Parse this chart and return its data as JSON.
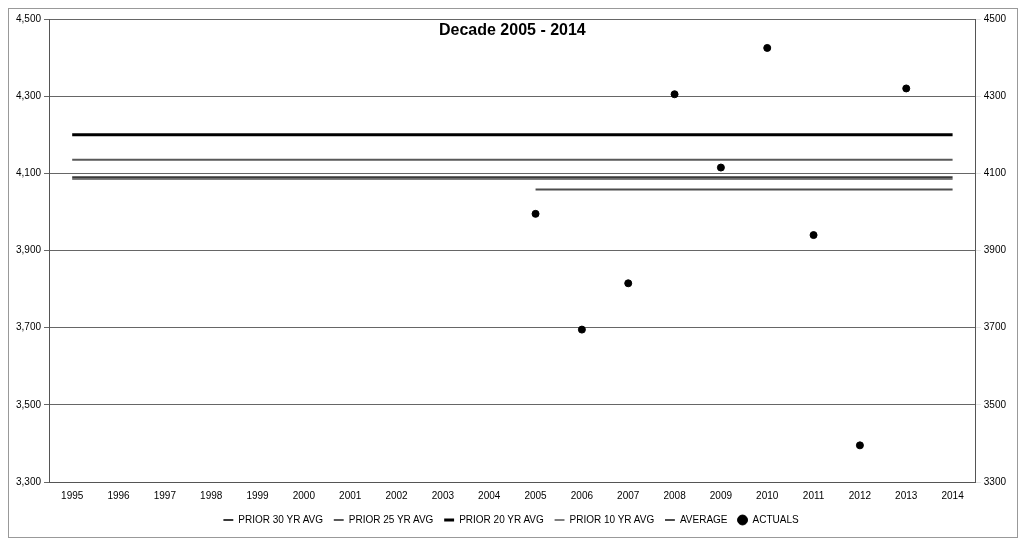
{
  "chart_data": {
    "type": "line",
    "title": "Decade 2005 - 2014",
    "categories": [
      "1995",
      "1996",
      "1997",
      "1998",
      "1999",
      "2000",
      "2001",
      "2002",
      "2003",
      "2004",
      "2005",
      "2006",
      "2007",
      "2008",
      "2009",
      "2010",
      "2011",
      "2012",
      "2013",
      "2014"
    ],
    "series": [
      {
        "name": "PRIOR 30 YR AVG",
        "color": "#3a3a3a",
        "values": [
          4090,
          4090,
          4090,
          4090,
          4090,
          4090,
          4090,
          4090,
          4090,
          4090,
          4090,
          4090,
          4090,
          4090,
          4090,
          4090,
          4090,
          4090,
          4090,
          4090
        ]
      },
      {
        "name": "PRIOR 25 YR AVG",
        "color": "#595959",
        "values": [
          4135,
          4135,
          4135,
          4135,
          4135,
          4135,
          4135,
          4135,
          4135,
          4135,
          4135,
          4135,
          4135,
          4135,
          4135,
          4135,
          4135,
          4135,
          4135,
          4135
        ]
      },
      {
        "name": "PRIOR 20 YR AVG",
        "color": "#000000",
        "values": [
          4200,
          4200,
          4200,
          4200,
          4200,
          4200,
          4200,
          4200,
          4200,
          4200,
          4200,
          4200,
          4200,
          4200,
          4200,
          4200,
          4200,
          4200,
          4200,
          4200
        ]
      },
      {
        "name": "PRIOR 10 YR AVG",
        "color": "#7f7f7f",
        "values": [
          4085,
          4085,
          4085,
          4085,
          4085,
          4085,
          4085,
          4085,
          4085,
          4085,
          4085,
          4085,
          4085,
          4085,
          4085,
          4085,
          4085,
          4085,
          4085,
          4085
        ]
      },
      {
        "name": "AVERAGE",
        "color": "#4d4d4d",
        "values": [
          null,
          null,
          null,
          null,
          null,
          null,
          null,
          null,
          null,
          null,
          4058,
          4058,
          4058,
          4058,
          4058,
          4058,
          4058,
          4058,
          4058,
          4058
        ]
      },
      {
        "name": "ACTUALS",
        "type": "scatter",
        "marker": "circle",
        "color": "#000000",
        "values": [
          null,
          null,
          null,
          null,
          null,
          null,
          null,
          null,
          null,
          null,
          3995,
          3695,
          3815,
          4305,
          4115,
          4425,
          3940,
          3395,
          4320,
          null
        ]
      }
    ],
    "ylim": [
      3300,
      4500
    ],
    "yticks": [
      {
        "value": 3300,
        "label": "3,300"
      },
      {
        "value": 3500,
        "label": "3,500"
      },
      {
        "value": 3700,
        "label": "3,700"
      },
      {
        "value": 3900,
        "label": "3,900"
      },
      {
        "value": 4100,
        "label": "4,100"
      },
      {
        "value": 4300,
        "label": "4,300"
      },
      {
        "value": 4500,
        "label": "4,500"
      }
    ],
    "y2lim": [
      3300,
      4500
    ],
    "y2ticks": [
      3300,
      3500,
      3700,
      3900,
      4100,
      4300,
      4500
    ],
    "grid": "y",
    "legend": "bottom"
  }
}
